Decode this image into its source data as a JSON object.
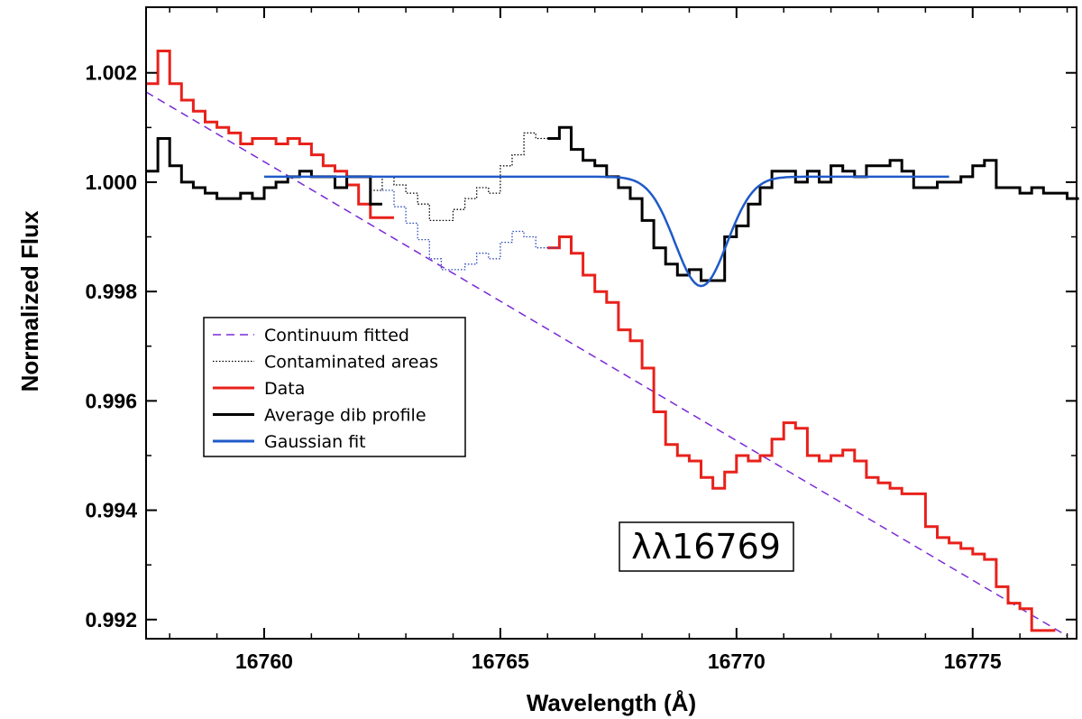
{
  "chart_data": {
    "type": "line",
    "xlabel": "Wavelength (Å)",
    "ylabel": "Normalized Flux",
    "xlim": [
      16757.5,
      16777.2
    ],
    "ylim": [
      0.99165,
      1.0032
    ],
    "xticks": [
      16760,
      16765,
      16770,
      16775
    ],
    "xtick_labels": [
      "16760",
      "16765",
      "16770",
      "16775"
    ],
    "yticks": [
      0.992,
      0.994,
      0.996,
      0.998,
      1.0,
      1.002
    ],
    "ytick_labels": [
      "0.992",
      "0.994",
      "0.996",
      "0.998",
      "1.000",
      "1.002"
    ],
    "annotation": "λλ16769",
    "legend": [
      {
        "label": "Continuum fitted",
        "color": "#7a2ad6",
        "style": "dashed"
      },
      {
        "label": "Contaminated areas",
        "color": "#000000",
        "style": "dotted"
      },
      {
        "label": "Data",
        "color": "#e8211b",
        "style": "solid"
      },
      {
        "label": "Average dib profile",
        "color": "#000000",
        "style": "solid"
      },
      {
        "label": "Gaussian fit",
        "color": "#1f5ac8",
        "style": "solid"
      }
    ],
    "continuum": {
      "x": [
        16757.5,
        16777.0
      ],
      "y": [
        1.00165,
        0.9917
      ]
    },
    "gaussian": {
      "x_start": 16760.0,
      "x_end": 16774.5,
      "baseline": 1.0001,
      "depth": 0.002,
      "center": 16769.25,
      "sigma": 0.55
    },
    "series": [
      {
        "name": "Data",
        "color": "#e8211b",
        "x": [
          16757.5,
          16757.75,
          16758.0,
          16758.25,
          16758.5,
          16758.75,
          16759.0,
          16759.25,
          16759.5,
          16759.75,
          16760.0,
          16760.25,
          16760.5,
          16760.75,
          16761.0,
          16761.25,
          16761.5,
          16761.75,
          16762.0,
          16762.25,
          16762.5
        ],
        "y": [
          1.0018,
          1.0024,
          1.0018,
          1.0015,
          1.0013,
          1.0011,
          1.001,
          1.0009,
          1.0007,
          1.0008,
          1.0008,
          1.0007,
          1.0008,
          1.0007,
          1.0005,
          1.0003,
          1.0002,
          0.99995,
          0.9996,
          0.99935,
          0.99935
        ]
      },
      {
        "name": "Data",
        "color": "#e8211b",
        "x": [
          16766.0,
          16766.25,
          16766.5,
          16766.75,
          16767.0,
          16767.25,
          16767.5,
          16767.75,
          16768.0,
          16768.25,
          16768.5,
          16768.75,
          16769.0,
          16769.25,
          16769.5,
          16769.75,
          16770.0,
          16770.25,
          16770.5,
          16770.75,
          16771.0,
          16771.25,
          16771.5,
          16771.75,
          16772.0,
          16772.25,
          16772.5,
          16772.75,
          16773.0,
          16773.25,
          16773.5,
          16773.75,
          16774.0,
          16774.25,
          16774.5,
          16774.75,
          16775.0,
          16775.25,
          16775.5,
          16775.75,
          16776.0,
          16776.25,
          16776.5
        ],
        "y": [
          0.9988,
          0.999,
          0.9987,
          0.9983,
          0.998,
          0.9978,
          0.9973,
          0.9971,
          0.9966,
          0.9958,
          0.9952,
          0.995,
          0.9949,
          0.9946,
          0.9944,
          0.9947,
          0.995,
          0.9949,
          0.995,
          0.9953,
          0.9956,
          0.9955,
          0.995,
          0.9949,
          0.995,
          0.9951,
          0.9949,
          0.9946,
          0.9945,
          0.9944,
          0.9943,
          0.9943,
          0.9937,
          0.9935,
          0.9934,
          0.9933,
          0.9932,
          0.9931,
          0.9926,
          0.9923,
          0.9922,
          0.9918,
          0.9918
        ]
      },
      {
        "name": "Contaminated (Data)",
        "color": "#2848b8",
        "x": [
          16762.5,
          16762.75,
          16763.0,
          16763.25,
          16763.5,
          16763.75,
          16764.0,
          16764.25,
          16764.5,
          16764.75,
          16765.0,
          16765.25,
          16765.5,
          16765.75,
          16766.0
        ],
        "y": [
          0.99985,
          0.99955,
          0.99925,
          0.99895,
          0.9986,
          0.9984,
          0.9984,
          0.9985,
          0.9987,
          0.9986,
          0.9989,
          0.9991,
          0.999,
          0.9988,
          0.9988
        ]
      },
      {
        "name": "Contaminated (Average)",
        "color": "#000000",
        "x": [
          16762.25,
          16762.5,
          16762.75,
          16763.0,
          16763.25,
          16763.5,
          16763.75,
          16764.0,
          16764.25,
          16764.5,
          16764.75,
          16765.0,
          16765.25,
          16765.5,
          16765.75,
          16766.0
        ],
        "y": [
          0.99985,
          1.0001,
          0.99995,
          0.9998,
          0.9996,
          0.9993,
          0.9993,
          0.9995,
          0.9997,
          0.9999,
          0.9998,
          1.0003,
          1.0005,
          1.0009,
          1.0008,
          1.0008
        ]
      },
      {
        "name": "Average dib profile",
        "color": "#000000",
        "x": [
          16757.5,
          16757.75,
          16758.0,
          16758.25,
          16758.5,
          16758.75,
          16759.0,
          16759.25,
          16759.5,
          16759.75,
          16760.0,
          16760.25,
          16760.5,
          16760.75,
          16761.0,
          16761.25,
          16761.5,
          16761.75,
          16762.0,
          16762.25
        ],
        "y": [
          1.0002,
          1.0008,
          1.0003,
          1.0,
          0.9999,
          0.9998,
          0.9997,
          0.9997,
          0.9998,
          0.9997,
          0.9999,
          1.0,
          1.0001,
          1.0002,
          1.0001,
          1.0001,
          0.9999,
          1.0001,
          1.0001,
          0.9996
        ]
      },
      {
        "name": "Average dib profile",
        "color": "#000000",
        "x": [
          16766.0,
          16766.25,
          16766.5,
          16766.75,
          16767.0,
          16767.25,
          16767.5,
          16767.75,
          16768.0,
          16768.25,
          16768.5,
          16768.75,
          16769.0,
          16769.25,
          16769.5,
          16769.75,
          16770.0,
          16770.25,
          16770.5,
          16770.75,
          16771.0,
          16771.25,
          16771.5,
          16771.75,
          16772.0,
          16772.25,
          16772.5,
          16772.75,
          16773.0,
          16773.25,
          16773.5,
          16773.75,
          16774.0,
          16774.25,
          16774.5,
          16774.75,
          16775.0,
          16775.25,
          16775.5,
          16775.75,
          16776.0,
          16776.25,
          16776.5,
          16776.75,
          16777.0
        ],
        "y": [
          1.0008,
          1.001,
          1.0006,
          1.0004,
          1.0003,
          1.0001,
          0.9999,
          0.9997,
          0.9993,
          0.9988,
          0.9985,
          0.9983,
          0.9984,
          0.9982,
          0.9982,
          0.999,
          0.9992,
          0.9996,
          0.9999,
          1.0002,
          1.0002,
          1.0,
          1.0002,
          1.0,
          1.0003,
          1.0002,
          1.0001,
          1.0003,
          1.0003,
          1.0004,
          1.0002,
          0.9999,
          0.9999,
          1.0,
          1.0,
          1.0001,
          1.0003,
          1.0004,
          0.9999,
          0.9999,
          0.9998,
          0.9999,
          0.9998,
          0.9998,
          0.9997
        ]
      }
    ]
  }
}
